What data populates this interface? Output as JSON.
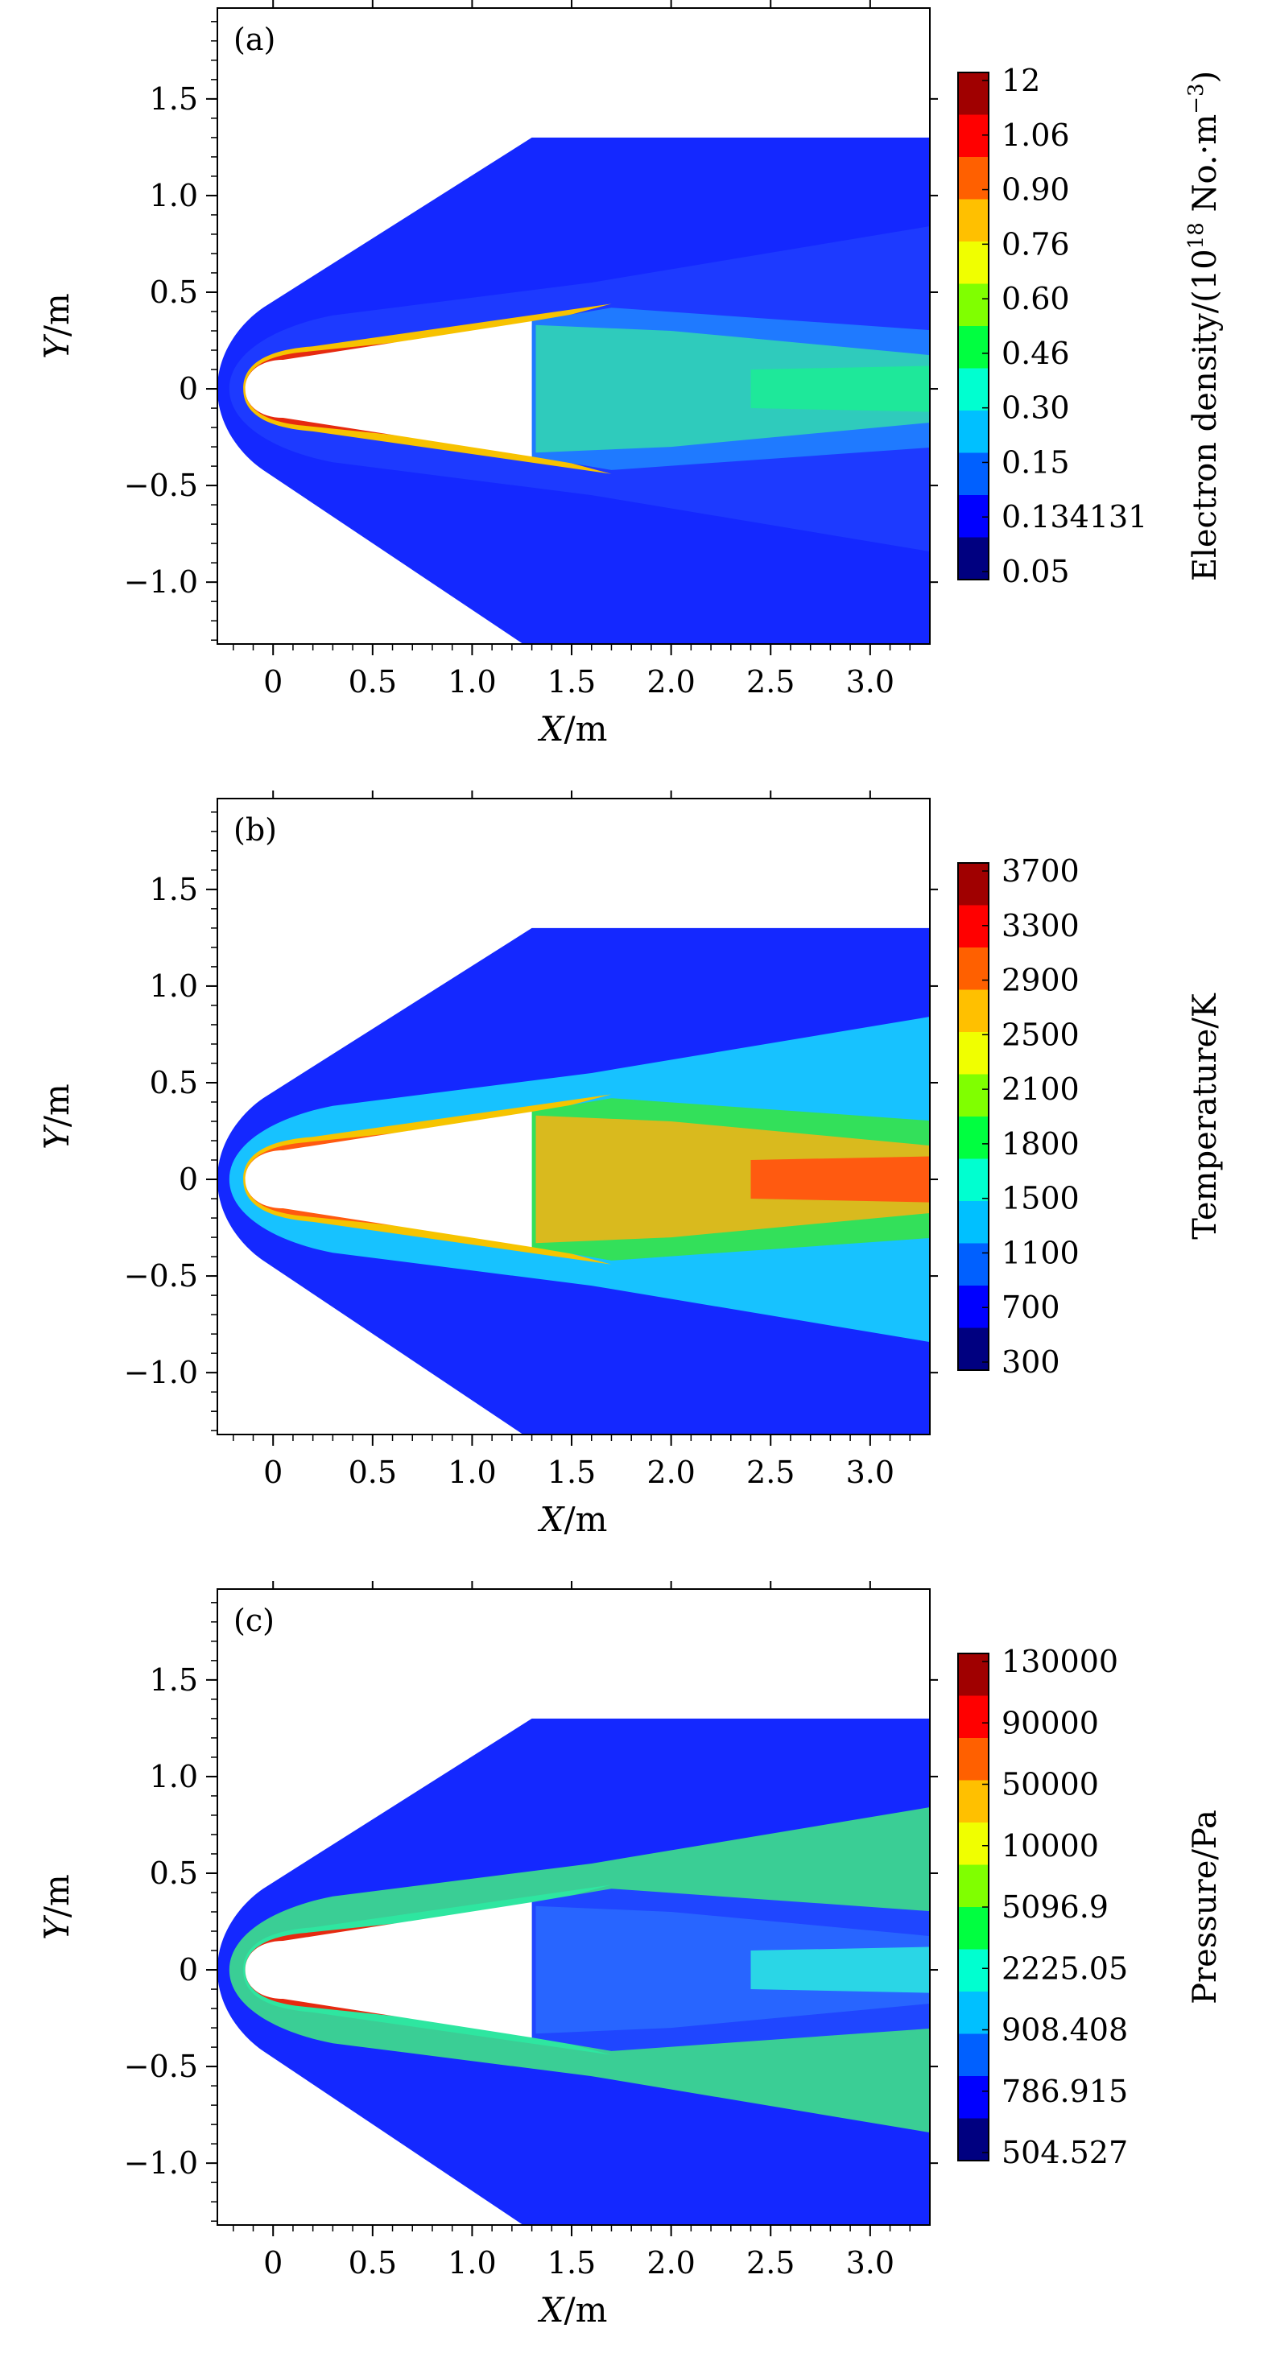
{
  "chart_data": [
    {
      "type": "heatmap",
      "panel_label": "(a)",
      "title": "",
      "xlabel_var": "X",
      "xlabel_unit": "/m",
      "ylabel_var": "Y",
      "ylabel_unit": "/m",
      "xlim": [
        -0.28,
        3.3
      ],
      "ylim": [
        -1.32,
        1.97
      ],
      "xticks": [
        0,
        0.5,
        1.0,
        1.5,
        2.0,
        2.5,
        3.0
      ],
      "xtick_labels": [
        "0",
        "0.5",
        "1.0",
        "1.5",
        "2.0",
        "2.5",
        "3.0"
      ],
      "yticks": [
        1.5,
        1.0,
        0.5,
        0,
        -0.5,
        -1.0
      ],
      "ytick_labels": [
        "1.5",
        "1.0",
        "0.5",
        "0",
        "−0.5",
        "−1.0"
      ],
      "colorbar_label_main": "Electron density/(10",
      "colorbar_label_sup": "18",
      "colorbar_label_unit": " No.·m",
      "colorbar_label_unit_sup": "−3",
      "colorbar_label_end": ")",
      "colorbar_ticks": [
        "12",
        "1.06",
        "0.90",
        "0.76",
        "0.60",
        "0.46",
        "0.30",
        "0.15",
        "0.134131",
        "0.05"
      ],
      "field": "electron_density",
      "regions": {
        "freestream": "#1428ff",
        "shock_layer": "#1e3cff",
        "near_wall_hot": "#e62a10",
        "near_wall_warm": "#f7c200",
        "wake_core": "#33d9b0",
        "wake_center": "#1ee89a",
        "wake_outer": "#1f7aff"
      }
    },
    {
      "type": "heatmap",
      "panel_label": "(b)",
      "title": "",
      "xlabel_var": "X",
      "xlabel_unit": "/m",
      "ylabel_var": "Y",
      "ylabel_unit": "/m",
      "xlim": [
        -0.28,
        3.3
      ],
      "ylim": [
        -1.32,
        1.97
      ],
      "xticks": [
        0,
        0.5,
        1.0,
        1.5,
        2.0,
        2.5,
        3.0
      ],
      "xtick_labels": [
        "0",
        "0.5",
        "1.0",
        "1.5",
        "2.0",
        "2.5",
        "3.0"
      ],
      "yticks": [
        1.5,
        1.0,
        0.5,
        0,
        -0.5,
        -1.0
      ],
      "ytick_labels": [
        "1.5",
        "1.0",
        "0.5",
        "0",
        "−0.5",
        "−1.0"
      ],
      "colorbar_label_main": "Temperature/K",
      "colorbar_ticks": [
        "3700",
        "3300",
        "2900",
        "2500",
        "2100",
        "1800",
        "1500",
        "1100",
        "700",
        "300"
      ],
      "field": "temperature",
      "regions": {
        "freestream": "#1428ff",
        "shock_layer": "#17d3ff",
        "near_wall_hot": "#ff5a10",
        "near_wall_warm": "#f6c400",
        "wake_core": "#f7b314",
        "wake_center": "#ff5a10",
        "wake_outer": "#33e05a"
      }
    },
    {
      "type": "heatmap",
      "panel_label": "(c)",
      "title": "",
      "xlabel_var": "X",
      "xlabel_unit": "/m",
      "ylabel_var": "Y",
      "ylabel_unit": "/m",
      "xlim": [
        -0.28,
        3.3
      ],
      "ylim": [
        -1.32,
        1.97
      ],
      "xticks": [
        0,
        0.5,
        1.0,
        1.5,
        2.0,
        2.5,
        3.0
      ],
      "xtick_labels": [
        "0",
        "0.5",
        "1.0",
        "1.5",
        "2.0",
        "2.5",
        "3.0"
      ],
      "yticks": [
        1.5,
        1.0,
        0.5,
        0,
        -0.5,
        -1.0
      ],
      "ytick_labels": [
        "1.5",
        "1.0",
        "0.5",
        "0",
        "−0.5",
        "−1.0"
      ],
      "colorbar_label_main": "Pressure/Pa",
      "colorbar_ticks": [
        "130000",
        "90000",
        "50000",
        "10000",
        "5096.9",
        "2225.05",
        "908.408",
        "786.915",
        "504.527"
      ],
      "field": "pressure",
      "regions": {
        "freestream": "#1428ff",
        "shock_layer": "#3ee08a",
        "near_wall_hot": "#e62a10",
        "near_wall_warm": "#2ee6a0",
        "wake_core": "#2a6bff",
        "wake_center": "#2ad6e6",
        "wake_outer": "#1f46ff"
      }
    }
  ],
  "colormap": [
    "#000080",
    "#0000ff",
    "#0060ff",
    "#00c0ff",
    "#00ffd0",
    "#00ff40",
    "#80ff00",
    "#f0ff00",
    "#ffc000",
    "#ff6000",
    "#ff0000",
    "#a00000"
  ]
}
